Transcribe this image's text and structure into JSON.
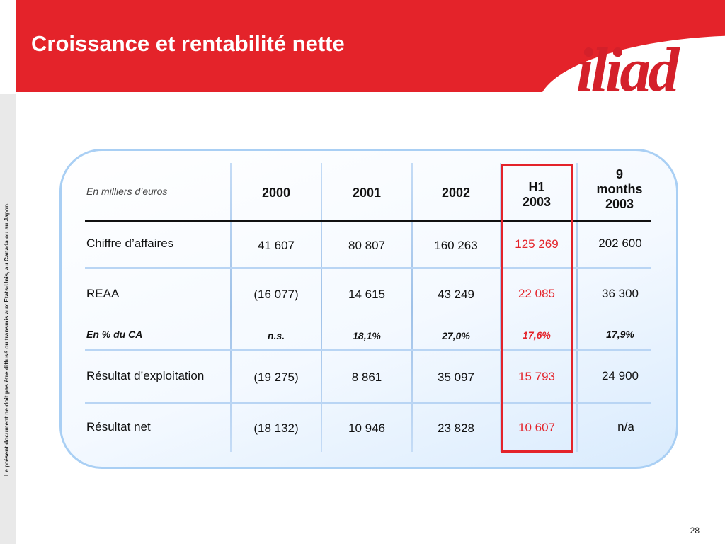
{
  "slide": {
    "title": "Croissance et rentabilité nette",
    "logo_text": "iliad",
    "side_note": "Le présent document ne doit pas être diffusé ou transmis aux Etats-Unis, au Canada ou au Japon.",
    "page_number": "28",
    "colors": {
      "brand_red": "#e4232a",
      "frame_blue": "#a9cff4",
      "logo_red": "#d4202a"
    }
  },
  "table": {
    "unit_label": "En milliers d’euros",
    "columns": [
      "2000",
      "2001",
      "2002",
      "H1\n2003",
      "9\nmonths\n2003"
    ],
    "highlighted_column": "H1 2003",
    "rows": [
      {
        "label": "Chiffre d’affaires",
        "values": [
          "41 607",
          "80 807",
          "160 263",
          "125 269",
          "202 600"
        ]
      },
      {
        "label": "REAA",
        "values": [
          "(16 077)",
          "14 615",
          "43 249",
          "22 085",
          "36 300"
        ]
      },
      {
        "label": "En % du CA",
        "values": [
          "n.s.",
          "18,1%",
          "27,0%",
          "17,6%",
          "17,9%"
        ]
      },
      {
        "label": "Résultat d’exploitation",
        "values": [
          "(19 275)",
          "8 861",
          "35 097",
          "15 793",
          "24 900"
        ]
      },
      {
        "label": "Résultat net",
        "values": [
          "(18 132)",
          "10 946",
          "23 828",
          "10 607",
          "n/a"
        ]
      }
    ]
  }
}
